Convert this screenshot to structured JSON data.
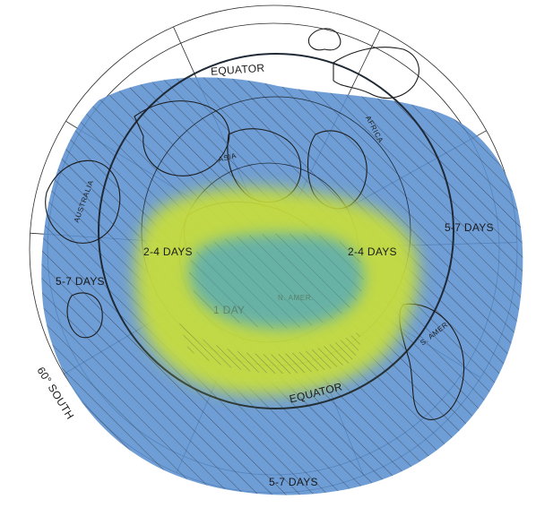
{
  "map": {
    "labels": {
      "equator_top": "EQUATOR",
      "equator_bottom": "EQUATOR",
      "sixty_south": "60° SOUTH",
      "asia": "ASIA",
      "africa": "AFRICA",
      "australia": "AUSTRALIA",
      "n_amer": "N. AMER.",
      "s_amer": "S. AMER.",
      "zone_1_day": "1 DAY",
      "zone_2_4_days_left": "2-4 DAYS",
      "zone_2_4_days_right": "2-4 DAYS",
      "zone_5_7_days_left": "5-7 DAYS",
      "zone_5_7_days_right": "5-7 DAYS",
      "zone_5_7_days_bottom": "5-7 DAYS"
    },
    "zone_colors": {
      "outer_5_7_days": "#5b8fcf",
      "middle_2_4_days": "#c9df3a",
      "inner_1_day": "#5faeb0"
    },
    "projection": "polar azimuthal"
  }
}
